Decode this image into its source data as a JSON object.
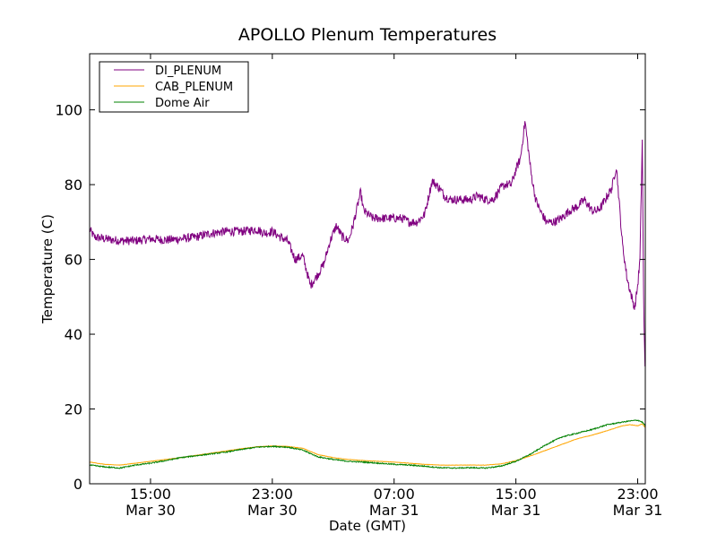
{
  "chart_data": {
    "type": "line",
    "title": "APOLLO Plenum Temperatures",
    "xlabel": "Date (GMT)",
    "ylabel": "Temperature (C)",
    "xlim": [
      11.0,
      47.5
    ],
    "ylim": [
      0,
      115
    ],
    "x_unit": "hours since 2013-03-30 00:00 GMT",
    "grid": false,
    "legend_position": "top-left",
    "yticks": [
      0,
      20,
      40,
      60,
      80,
      100
    ],
    "xticks": [
      {
        "value": 15,
        "time": "15:00",
        "date": "Mar 30"
      },
      {
        "value": 23,
        "time": "23:00",
        "date": "Mar 30"
      },
      {
        "value": 31,
        "time": "07:00",
        "date": "Mar 31"
      },
      {
        "value": 39,
        "time": "15:00",
        "date": "Mar 31"
      },
      {
        "value": 47,
        "time": "23:00",
        "date": "Mar 31"
      }
    ],
    "series": [
      {
        "name": "DI_PLENUM",
        "color": "#800080",
        "noise": 1.2,
        "x": [
          11.0,
          11.3,
          12.0,
          13.0,
          14.0,
          15.0,
          16.0,
          17.0,
          18.0,
          19.0,
          20.0,
          21.0,
          22.0,
          22.5,
          23.0,
          23.5,
          24.0,
          24.5,
          25.0,
          25.5,
          26.0,
          26.4,
          26.8,
          27.2,
          27.6,
          28.0,
          28.3,
          28.8,
          29.0,
          29.3,
          29.6,
          30.0,
          30.5,
          31.0,
          31.5,
          32.0,
          32.5,
          33.0,
          33.5,
          34.0,
          34.3,
          34.7,
          35.0,
          35.5,
          36.0,
          36.5,
          37.0,
          37.5,
          38.0,
          38.3,
          38.7,
          39.0,
          39.3,
          39.6,
          40.0,
          40.3,
          40.6,
          41.0,
          41.5,
          42.0,
          42.5,
          43.0,
          43.5,
          44.0,
          44.3,
          44.6,
          45.0,
          45.3,
          45.6,
          46.0,
          46.3,
          46.6,
          46.8,
          47.0,
          47.15,
          47.3,
          47.4,
          47.5
        ],
        "values": [
          68,
          66,
          65.5,
          65,
          65,
          65.5,
          65.2,
          65.5,
          66,
          67,
          67.5,
          67.5,
          68,
          67,
          67.5,
          66,
          65,
          60,
          61,
          53,
          56,
          59,
          65,
          69,
          66,
          65,
          69,
          78,
          73,
          72,
          71,
          71,
          71,
          71,
          71,
          70,
          70,
          72,
          81,
          79,
          77,
          76,
          76,
          76,
          76,
          77,
          76,
          76,
          79,
          80,
          80,
          84,
          87,
          97,
          83,
          76,
          73,
          70,
          70,
          71,
          73,
          74,
          76,
          73,
          73,
          74,
          77,
          79,
          85,
          64,
          55,
          50,
          47,
          53,
          60,
          92,
          45,
          28
        ]
      },
      {
        "name": "CAB_PLENUM",
        "color": "#ffa500",
        "noise": 0.05,
        "x": [
          11.0,
          12.0,
          13.0,
          14.0,
          15.0,
          16.0,
          17.0,
          18.0,
          19.0,
          20.0,
          21.0,
          22.0,
          23.0,
          24.0,
          25.0,
          26.0,
          27.0,
          28.0,
          29.0,
          30.0,
          31.0,
          32.0,
          33.0,
          34.0,
          35.0,
          36.0,
          37.0,
          38.0,
          39.0,
          40.0,
          41.0,
          42.0,
          43.0,
          44.0,
          45.0,
          46.0,
          46.5,
          47.0,
          47.3,
          47.5
        ],
        "values": [
          5.8,
          5.2,
          5.0,
          5.5,
          6.0,
          6.5,
          7.0,
          7.6,
          8.2,
          8.8,
          9.4,
          9.9,
          10.1,
          10.0,
          9.5,
          7.8,
          7.0,
          6.5,
          6.2,
          6.0,
          5.8,
          5.5,
          5.2,
          5.0,
          5.0,
          5.0,
          5.0,
          5.3,
          6.2,
          7.5,
          9.0,
          10.5,
          12.0,
          13.0,
          14.2,
          15.5,
          15.8,
          15.5,
          16.0,
          15.0
        ]
      },
      {
        "name": "Dome Air",
        "color": "#008000",
        "noise": 0.15,
        "x": [
          11.0,
          12.0,
          13.0,
          14.0,
          15.0,
          16.0,
          17.0,
          18.0,
          19.0,
          20.0,
          21.0,
          22.0,
          23.0,
          24.0,
          25.0,
          26.0,
          27.0,
          28.0,
          29.0,
          30.0,
          31.0,
          32.0,
          33.0,
          34.0,
          35.0,
          36.0,
          37.0,
          38.0,
          39.0,
          40.0,
          41.0,
          42.0,
          43.0,
          44.0,
          45.0,
          46.0,
          46.5,
          47.0,
          47.3,
          47.5
        ],
        "values": [
          5.0,
          4.5,
          4.2,
          5.0,
          5.5,
          6.2,
          7.0,
          7.5,
          8.0,
          8.5,
          9.2,
          9.8,
          10.0,
          9.8,
          9.0,
          7.2,
          6.5,
          6.0,
          5.8,
          5.5,
          5.2,
          5.0,
          4.7,
          4.3,
          4.2,
          4.3,
          4.2,
          4.7,
          6.0,
          8.0,
          10.5,
          12.5,
          13.5,
          14.5,
          15.8,
          16.5,
          16.8,
          17.0,
          16.5,
          15.5
        ]
      }
    ]
  }
}
